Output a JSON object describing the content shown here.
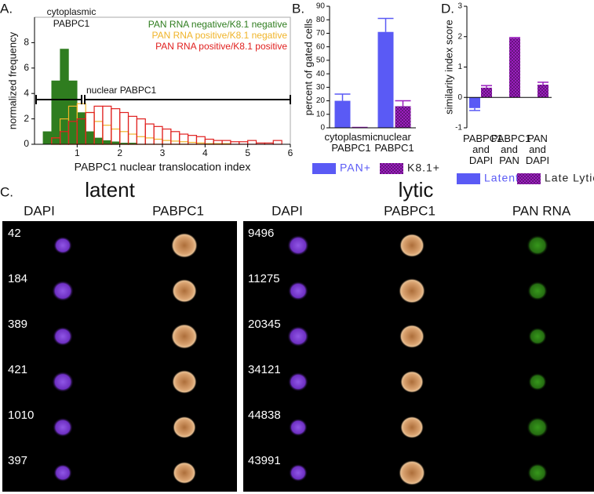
{
  "panel_labels": [
    "A.",
    "B.",
    "C.",
    "D."
  ],
  "chart_data": [
    {
      "type": "histogram",
      "xlabel": "PABPC1 nuclear translocation index",
      "ylabel": "normalized frequency",
      "annotations": [
        "cytoplasmic PABPC1",
        "nuclear PABPC1"
      ],
      "bins": [
        0,
        0.2,
        0.4,
        0.6,
        0.8,
        1,
        1.2,
        1.4,
        1.6,
        1.8,
        2,
        2.2,
        2.4,
        2.6,
        2.8,
        3,
        3.2,
        3.4,
        3.6,
        3.8,
        4,
        4.2,
        4.4,
        4.6,
        4.8,
        5,
        5.2,
        5.4,
        5.6,
        5.8,
        6
      ],
      "series": [
        {
          "name": "PAN RNA negative/K8.1 negative",
          "color": "#2f7d1f",
          "filled": true,
          "values": [
            0,
            1,
            5,
            7.5,
            5,
            2.5,
            1,
            0.5,
            0.3,
            0.2,
            0.1,
            0.1,
            0,
            0,
            0,
            0,
            0,
            0,
            0,
            0,
            0,
            0,
            0,
            0,
            0,
            0,
            0,
            0,
            0,
            0
          ]
        },
        {
          "name": "PAN RNA positive/K8.1 negative",
          "color": "#f0b429",
          "filled": false,
          "values": [
            0,
            0,
            0.5,
            2,
            3,
            3.2,
            2.5,
            1.8,
            1.5,
            1.2,
            1,
            0.8,
            0.6,
            0.5,
            0.4,
            0.3,
            0.25,
            0.2,
            0.15,
            0.1,
            0.05,
            0.05,
            0.05,
            0,
            0,
            0,
            0,
            0,
            0,
            0
          ]
        },
        {
          "name": "PAN RNA positive/K8.1 positive",
          "color": "#e0201f",
          "filled": false,
          "values": [
            0,
            0,
            0.5,
            1,
            1.8,
            2,
            2.5,
            3,
            3,
            2.8,
            2.5,
            2.2,
            2,
            1.6,
            1.4,
            1.2,
            1,
            0.8,
            0.7,
            0.6,
            0.4,
            0.3,
            0.3,
            0.2,
            0.2,
            0.3,
            0.1,
            0.1,
            0.3,
            0
          ]
        }
      ],
      "xlim": [
        0,
        6
      ],
      "ylim": [
        0,
        10
      ],
      "xticks": [
        1,
        2,
        3,
        4,
        5,
        6
      ],
      "yticks": [
        0,
        2,
        4,
        6,
        8
      ],
      "legend": "upper right"
    },
    {
      "type": "bar",
      "ylabel": "percent of gated cells",
      "categories": [
        "cytoplasmic PABPC1",
        "nuclear PABPC1"
      ],
      "series": [
        {
          "name": "PAN+",
          "color": "#5a5af5",
          "values": [
            20,
            71
          ],
          "errors": [
            5,
            10
          ]
        },
        {
          "name": "K8.1+",
          "color": "#9b1fbf",
          "pattern": "checker",
          "values": [
            0.3,
            16
          ],
          "errors": [
            0,
            4
          ]
        }
      ],
      "ylim": [
        0,
        90
      ],
      "yticks": [
        0,
        10,
        20,
        30,
        40,
        50,
        60,
        70,
        80,
        90
      ],
      "legend": "bottom"
    },
    {
      "type": "bar",
      "ylabel": "similarity index score",
      "categories": [
        "PABPC1 and DAPI",
        "PABPC1 and PAN",
        "PAN and DAPI"
      ],
      "series": [
        {
          "name": "Latent",
          "color": "#5a5af5",
          "values": [
            -0.35,
            null,
            null
          ],
          "errors": [
            0.08,
            null,
            null
          ]
        },
        {
          "name": "Late Lytic",
          "color": "#9b1fbf",
          "pattern": "checker",
          "values": [
            0.32,
            1.95,
            0.42
          ],
          "errors": [
            0.07,
            0.02,
            0.08
          ]
        }
      ],
      "ylim": [
        -1,
        3
      ],
      "yticks": [
        -1,
        0,
        1,
        2,
        3
      ],
      "legend": "bottom"
    }
  ],
  "panel_c": {
    "groups": [
      {
        "title": "latent",
        "channels": [
          "DAPI",
          "PABPC1"
        ],
        "cells": [
          "42",
          "184",
          "389",
          "421",
          "1010",
          "397"
        ]
      },
      {
        "title": "lytic",
        "channels": [
          "DAPI",
          "PABPC1",
          "PAN RNA"
        ],
        "cells": [
          "9496",
          "11275",
          "20345",
          "34121",
          "44838",
          "43991"
        ]
      }
    ]
  }
}
